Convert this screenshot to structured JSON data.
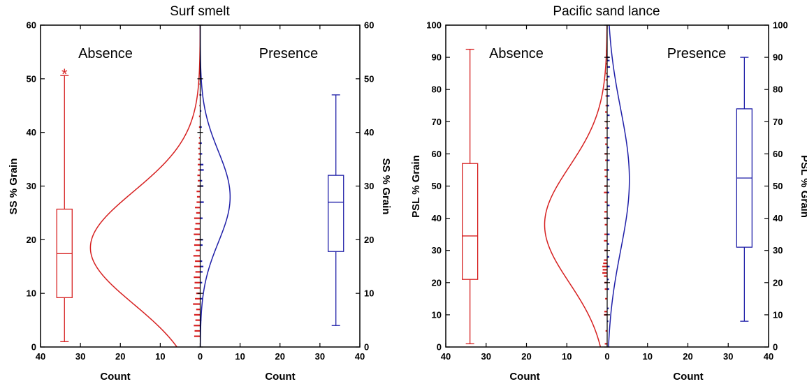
{
  "colors": {
    "absence": "#d62020",
    "presence": "#1f1fa8",
    "axis": "#000000"
  },
  "chart_data": [
    {
      "type": "boxplot_histogram",
      "title": "Surf smelt",
      "ylabel_left": "SS % Grain",
      "ylabel_right": "SS % Grain",
      "xlabel_left": "Count",
      "xlabel_right": "Count",
      "annotation_left": "Absence",
      "annotation_right": "Presence",
      "ylim": [
        0,
        60
      ],
      "yticks": [
        0,
        10,
        20,
        30,
        40,
        50,
        60
      ],
      "xlim_left": [
        40,
        0
      ],
      "xlim_right": [
        0,
        40
      ],
      "xticks_left": [
        40,
        30,
        20,
        10,
        0
      ],
      "xticks_right": [
        0,
        10,
        20,
        30,
        40
      ],
      "boxplots": [
        {
          "name": "Absence",
          "count_position": 34,
          "whisker_low": 1,
          "q1": 9.2,
          "median": 17.4,
          "q3": 25.7,
          "whisker_high": 50.6,
          "outliers": [
            51
          ]
        },
        {
          "name": "Presence",
          "count_position": 34,
          "whisker_low": 4,
          "q1": 17.8,
          "median": 27,
          "q3": 32,
          "whisker_high": 47,
          "outliers": []
        }
      ],
      "normal_fits": [
        {
          "name": "Absence",
          "peak_count": 27.5,
          "mean": 18.5,
          "sd": 10.5
        },
        {
          "name": "Presence",
          "peak_count": 7.5,
          "mean": 28,
          "sd": 8.5
        }
      ],
      "histograms": [
        {
          "name": "Absence",
          "bins": [
            [
              2,
              1.5
            ],
            [
              3,
              1.4
            ],
            [
              4,
              1.6
            ],
            [
              5,
              1.2
            ],
            [
              6,
              1.5
            ],
            [
              7,
              1.0
            ],
            [
              8,
              1.8
            ],
            [
              9,
              1.3
            ],
            [
              10,
              1.0
            ],
            [
              11,
              1.5
            ],
            [
              12,
              1.4
            ],
            [
              13,
              1.6
            ],
            [
              14,
              1.2
            ],
            [
              15,
              1.5
            ],
            [
              16,
              1.3
            ],
            [
              17,
              1.7
            ],
            [
              18,
              1.1
            ],
            [
              19,
              1.5
            ],
            [
              20,
              1.3
            ],
            [
              21,
              1.6
            ],
            [
              22,
              1.4
            ],
            [
              23,
              1.2
            ],
            [
              24,
              1.5
            ],
            [
              25,
              1.0
            ],
            [
              26,
              1.3
            ],
            [
              27,
              0.9
            ],
            [
              28,
              0.8
            ],
            [
              29,
              0.9
            ],
            [
              30,
              0.7
            ],
            [
              31,
              0.6
            ],
            [
              32,
              0.7
            ],
            [
              33,
              0.5
            ],
            [
              34,
              0.6
            ],
            [
              35,
              0.5
            ],
            [
              36,
              0.4
            ],
            [
              37,
              0.5
            ],
            [
              38,
              0.4
            ],
            [
              39,
              0.3
            ],
            [
              41,
              0.3
            ],
            [
              43,
              0.3
            ],
            [
              45,
              0.2
            ],
            [
              47,
              0.2
            ],
            [
              49,
              0.2
            ],
            [
              51,
              0.2
            ]
          ]
        },
        {
          "name": "Presence",
          "bins": [
            [
              5,
              0.3
            ],
            [
              9,
              0.6
            ],
            [
              12,
              0.5
            ],
            [
              14,
              0.6
            ],
            [
              15,
              0.8
            ],
            [
              16,
              0.5
            ],
            [
              19,
              0.6
            ],
            [
              20,
              0.7
            ],
            [
              24,
              0.6
            ],
            [
              27,
              0.9
            ],
            [
              30,
              0.8
            ],
            [
              31,
              0.5
            ],
            [
              33,
              0.9
            ],
            [
              34,
              0.8
            ],
            [
              36,
              0.5
            ],
            [
              38,
              0.4
            ],
            [
              41,
              0.4
            ],
            [
              44,
              0.3
            ],
            [
              47,
              0.3
            ]
          ]
        }
      ]
    },
    {
      "type": "boxplot_histogram",
      "title": "Pacific sand lance",
      "ylabel_left": "PSL % Grain",
      "ylabel_right": "PSL % Grain",
      "xlabel_left": "Count",
      "xlabel_right": "Count",
      "annotation_left": "Absence",
      "annotation_right": "Presence",
      "ylim": [
        0,
        100
      ],
      "yticks": [
        0,
        10,
        20,
        30,
        40,
        50,
        60,
        70,
        80,
        90,
        100
      ],
      "xlim_left": [
        40,
        0
      ],
      "xlim_right": [
        0,
        40
      ],
      "xticks_left": [
        40,
        30,
        20,
        10,
        0
      ],
      "xticks_right": [
        0,
        10,
        20,
        30,
        40
      ],
      "boxplots": [
        {
          "name": "Absence",
          "count_position": 34,
          "whisker_low": 1,
          "q1": 21,
          "median": 34.5,
          "q3": 57,
          "whisker_high": 92.5,
          "outliers": []
        },
        {
          "name": "Presence",
          "count_position": 34,
          "whisker_low": 8,
          "q1": 31,
          "median": 52.5,
          "q3": 74,
          "whisker_high": 90,
          "outliers": []
        }
      ],
      "normal_fits": [
        {
          "name": "Absence",
          "peak_count": 15.5,
          "mean": 38,
          "sd": 18
        },
        {
          "name": "Presence",
          "peak_count": 5.5,
          "mean": 52,
          "sd": 22
        }
      ],
      "histograms": [
        {
          "name": "Absence",
          "bins": [
            [
              1,
              0.6
            ],
            [
              5,
              0.4
            ],
            [
              10,
              0.8
            ],
            [
              11,
              0.7
            ],
            [
              15,
              0.5
            ],
            [
              18,
              0.6
            ],
            [
              20,
              0.7
            ],
            [
              22,
              0.8
            ],
            [
              23,
              1.2
            ],
            [
              24,
              1.1
            ],
            [
              25,
              1.2
            ],
            [
              26,
              1.0
            ],
            [
              27,
              0.8
            ],
            [
              30,
              0.7
            ],
            [
              33,
              0.8
            ],
            [
              35,
              0.7
            ],
            [
              38,
              0.6
            ],
            [
              40,
              0.8
            ],
            [
              42,
              0.7
            ],
            [
              45,
              0.6
            ],
            [
              48,
              0.8
            ],
            [
              50,
              0.7
            ],
            [
              53,
              0.6
            ],
            [
              55,
              0.7
            ],
            [
              58,
              0.5
            ],
            [
              60,
              0.6
            ],
            [
              63,
              0.5
            ],
            [
              65,
              0.6
            ],
            [
              68,
              0.5
            ],
            [
              70,
              0.4
            ],
            [
              73,
              0.5
            ],
            [
              75,
              0.4
            ],
            [
              78,
              0.4
            ],
            [
              80,
              0.5
            ],
            [
              83,
              0.4
            ],
            [
              85,
              0.3
            ],
            [
              88,
              0.3
            ],
            [
              90,
              0.3
            ],
            [
              92,
              0.3
            ]
          ]
        },
        {
          "name": "Presence",
          "bins": [
            [
              8,
              0.3
            ],
            [
              12,
              0.4
            ],
            [
              18,
              0.5
            ],
            [
              21,
              0.4
            ],
            [
              25,
              0.6
            ],
            [
              28,
              0.5
            ],
            [
              32,
              0.5
            ],
            [
              35,
              0.6
            ],
            [
              40,
              0.5
            ],
            [
              44,
              0.6
            ],
            [
              48,
              0.5
            ],
            [
              52,
              0.6
            ],
            [
              55,
              0.5
            ],
            [
              58,
              0.6
            ],
            [
              62,
              0.5
            ],
            [
              65,
              0.6
            ],
            [
              68,
              0.5
            ],
            [
              72,
              0.6
            ],
            [
              75,
              0.5
            ],
            [
              78,
              0.6
            ],
            [
              81,
              0.7
            ],
            [
              84,
              0.6
            ],
            [
              87,
              0.7
            ],
            [
              89,
              0.6
            ],
            [
              90,
              0.5
            ]
          ]
        }
      ]
    }
  ]
}
